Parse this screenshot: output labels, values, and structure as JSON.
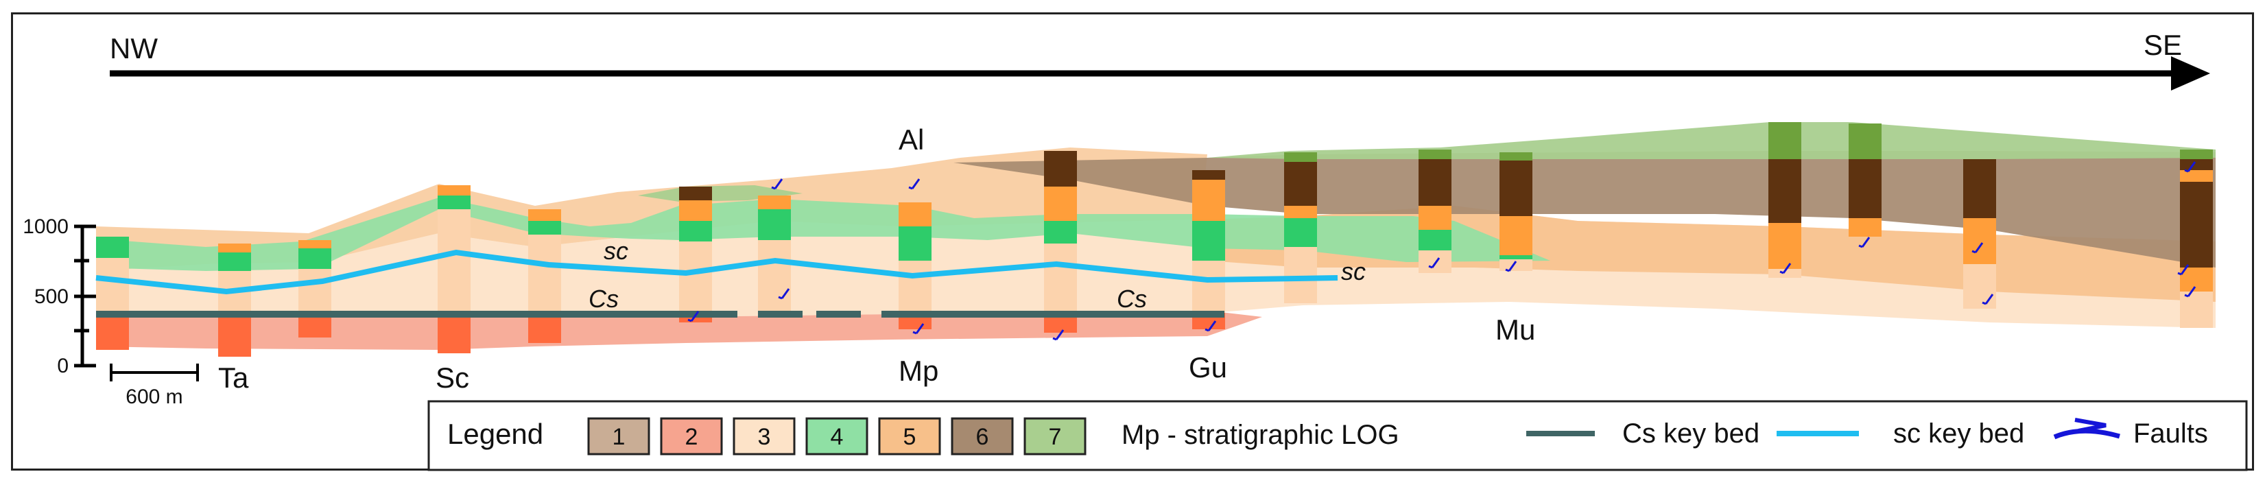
{
  "directions": {
    "left": "NW",
    "right": "SE"
  },
  "axis": {
    "ticks": [
      "0",
      "500",
      "1000"
    ]
  },
  "scale_bar": {
    "label": "600 m"
  },
  "sections": [
    "Ta",
    "Sc",
    "Al",
    "Mp",
    "Gu",
    "Mu"
  ],
  "key_bed_labels": {
    "sc_1": "sc",
    "sc_2": "sc",
    "cs_1": "Cs",
    "cs_2": "Cs"
  },
  "legend": {
    "title": "Legend",
    "units": [
      {
        "label": "1",
        "color": "#c9ad95"
      },
      {
        "label": "2",
        "color": "#f6a48f"
      },
      {
        "label": "3",
        "color": "#fde3c8"
      },
      {
        "label": "4",
        "color": "#8fe0a4"
      },
      {
        "label": "5",
        "color": "#f7c08a"
      },
      {
        "label": "6",
        "color": "#a68a70"
      },
      {
        "label": "7",
        "color": "#a9cf8f"
      }
    ],
    "log_note": "Mp - stratigraphic LOG",
    "cs_key_bed": {
      "label": "Cs key bed",
      "color": "#3f6565"
    },
    "sc_key_bed": {
      "label": "sc key bed",
      "color": "#1fbdf0"
    },
    "faults": {
      "label": "Faults",
      "color": "#1515d8"
    }
  }
}
